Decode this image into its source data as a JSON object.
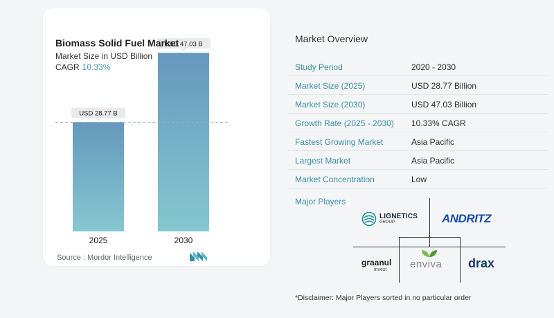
{
  "left": {
    "title": "Biomass Solid Fuel Market",
    "subtitle": "Market Size in USD Billion",
    "cagr_label": "CAGR",
    "cagr_value": "10.33%",
    "source": "Source :  Mordor Intelligence"
  },
  "chart_data": {
    "type": "bar",
    "categories": [
      "2025",
      "2030"
    ],
    "values": [
      28.77,
      47.03
    ],
    "data_labels": [
      "USD 28.77 B",
      "USD 47.03 B"
    ],
    "ylim": [
      0,
      50
    ],
    "reference_line": 28.77,
    "colors": {
      "top": "#6598bd",
      "bottom": "#86c7cf",
      "label_bg": "#e9eaec",
      "ref_line": "#8fb6c4"
    }
  },
  "overview": {
    "title": "Market Overview",
    "rows": [
      {
        "label": "Study Period",
        "value": "2020 - 2030"
      },
      {
        "label": "Market Size (2025)",
        "value": "USD 28.77 Billion"
      },
      {
        "label": "Market Size (2030)",
        "value": "USD 47.03 Billion"
      },
      {
        "label": "Growth Rate (2025 - 2030)",
        "value": "10.33% CAGR"
      },
      {
        "label": "Fastest Growing Market",
        "value": "Asia Pacific"
      },
      {
        "label": "Largest Market",
        "value": "Asia Pacific"
      },
      {
        "label": "Market Concentration",
        "value": "Low"
      }
    ],
    "major_players_title": "Major Players",
    "players": {
      "lignetics": "LIGNETICS",
      "lignetics_sub": "GROUP",
      "andritz": "ANDRITZ",
      "graanul": "graanul",
      "graanul_sub": "invest",
      "enviva": "enviva",
      "drax": "drax"
    },
    "disclaimer": "*Disclaimer: Major Players sorted in no particular order"
  }
}
